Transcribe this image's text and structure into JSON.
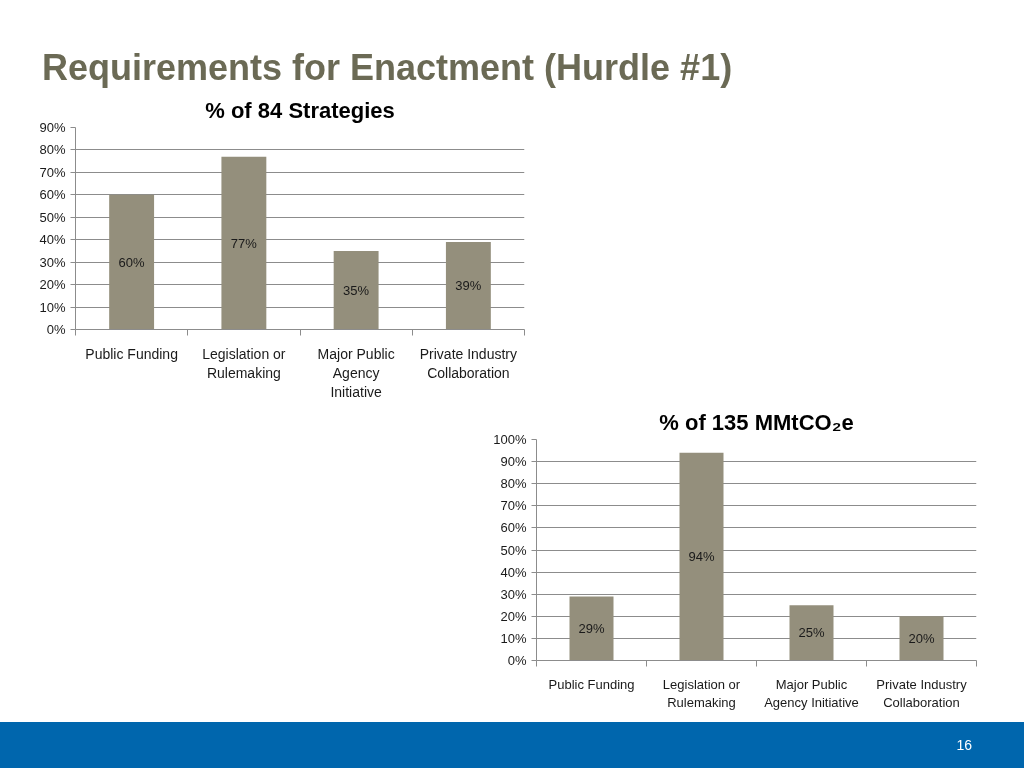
{
  "chart_data": [
    {
      "type": "other",
      "title": "Requirements for Enactment (Hurdle #1)",
      "annotations": [
        "16"
      ]
    },
    {
      "type": "bar",
      "title": "% of 84 Strategies",
      "categories": [
        "Public Funding",
        "Legislation or\nRulemaking",
        "Major Public\nAgency\nInitiative",
        "Private Industry\nCollaboration"
      ],
      "values": [
        60,
        77,
        35,
        39
      ],
      "color": "#948f7c",
      "value_labels": [
        "60%",
        "77%",
        "35%",
        "39%"
      ],
      "ylim": [
        0,
        90
      ],
      "yticks": [
        {
          "value": 0,
          "label": "0%"
        },
        {
          "value": 10,
          "label": "10%"
        },
        {
          "value": 20,
          "label": "20%"
        },
        {
          "value": 30,
          "label": "30%"
        },
        {
          "value": 40,
          "label": "40%"
        },
        {
          "value": 50,
          "label": "50%"
        },
        {
          "value": 60,
          "label": "60%"
        },
        {
          "value": 70,
          "label": "70%"
        },
        {
          "value": 80,
          "label": "80%"
        },
        {
          "value": 90,
          "label": "90%"
        }
      ],
      "grid": "y"
    },
    {
      "type": "bar",
      "title": "% of 135 MMtCO₂e",
      "categories": [
        "Public Funding",
        "Legislation or\nRulemaking",
        "Major Public\nAgency Initiative",
        "Private Industry\nCollaboration"
      ],
      "values": [
        29,
        94,
        25,
        20
      ],
      "color": "#948f7c",
      "value_labels": [
        "29%",
        "94%",
        "25%",
        "20%"
      ],
      "ylim": [
        0,
        100
      ],
      "yticks": [
        {
          "value": 0,
          "label": "0%"
        },
        {
          "value": 10,
          "label": "10%"
        },
        {
          "value": 20,
          "label": "20%"
        },
        {
          "value": 30,
          "label": "30%"
        },
        {
          "value": 40,
          "label": "40%"
        },
        {
          "value": 50,
          "label": "50%"
        },
        {
          "value": 60,
          "label": "60%"
        },
        {
          "value": 70,
          "label": "70%"
        },
        {
          "value": 80,
          "label": "80%"
        },
        {
          "value": 90,
          "label": "90%"
        },
        {
          "value": 100,
          "label": "100%"
        }
      ],
      "grid": "y"
    }
  ]
}
